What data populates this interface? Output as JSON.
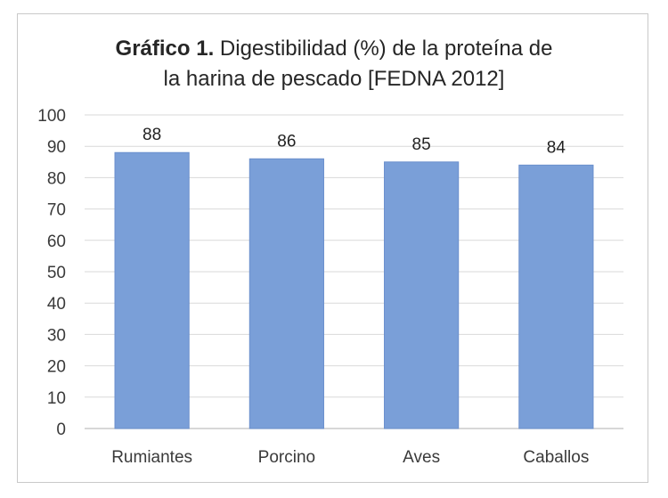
{
  "chart_data": {
    "type": "bar",
    "title_lead": "Gráfico 1.",
    "title_rest_line1": " Digestibilidad (%) de la proteína de",
    "title_line2": "la harina de pescado [FEDNA 2012]",
    "categories": [
      "Rumiantes",
      "Porcino",
      "Aves",
      "Caballos"
    ],
    "values": [
      88,
      86,
      85,
      84
    ],
    "data_labels": [
      "88",
      "86",
      "85",
      "84"
    ],
    "ylim": [
      0,
      100
    ],
    "yticks": [
      0,
      10,
      20,
      30,
      40,
      50,
      60,
      70,
      80,
      90,
      100
    ],
    "grid": true,
    "bar_color": "#7a9fd8",
    "bar_border_color": "#6a8fcc"
  }
}
